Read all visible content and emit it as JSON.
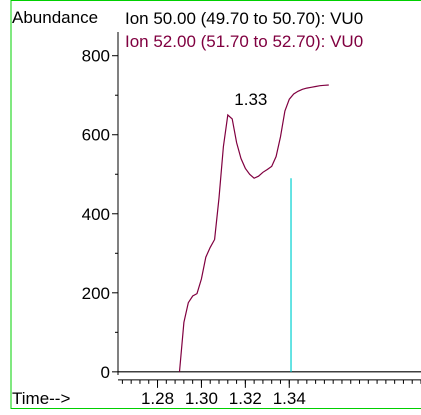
{
  "chart_data": {
    "type": "line",
    "title": "",
    "ylabel": "Abundance",
    "xlabel": "Time-->",
    "series": [
      {
        "name": "Ion  50.00 (49.70 to 50.70): VU0",
        "color": "#000000",
        "x": [
          1.262,
          1.29,
          1.42
        ],
        "y": [
          0,
          0,
          0
        ]
      },
      {
        "name": "Ion  52.00 (51.70 to 52.70): VU0",
        "color": "#800040",
        "x": [
          1.29,
          1.292,
          1.294,
          1.296,
          1.298,
          1.3,
          1.302,
          1.304,
          1.306,
          1.308,
          1.31,
          1.312,
          1.314,
          1.316,
          1.318,
          1.32,
          1.322,
          1.324,
          1.326,
          1.328,
          1.33,
          1.332,
          1.334,
          1.336,
          1.338,
          1.34,
          1.342,
          1.344,
          1.346,
          1.348,
          1.35,
          1.352,
          1.354,
          1.356,
          1.358
        ],
        "y": [
          0,
          125,
          175,
          192,
          198,
          235,
          290,
          315,
          335,
          440,
          570,
          650,
          640,
          580,
          540,
          515,
          500,
          490,
          495,
          505,
          512,
          520,
          545,
          595,
          660,
          690,
          703,
          710,
          715,
          718,
          720,
          722,
          724,
          725,
          726
        ]
      }
    ],
    "xlim": [
      1.262,
      1.4
    ],
    "ylim": [
      -8,
      860
    ],
    "xticks": [
      1.28,
      1.3,
      1.32,
      1.34
    ],
    "xtick_labels": [
      "1.28",
      "1.30",
      "1.32",
      "1.34"
    ],
    "yticks": [
      0,
      200,
      400,
      600,
      800
    ],
    "ytick_labels": [
      "0",
      "200",
      "400",
      "600",
      "800"
    ],
    "annotations": [
      {
        "text": "1.33",
        "x": 1.3225,
        "y": 650
      }
    ],
    "marker_line": {
      "x": 1.3408,
      "y_top": 490,
      "color": "#00d0d0"
    },
    "grid": false,
    "border_color": "#00d000"
  }
}
